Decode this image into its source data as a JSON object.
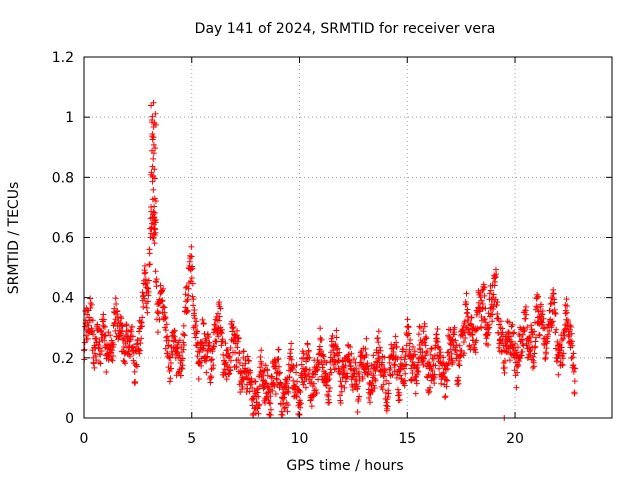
{
  "chart_data": {
    "type": "scatter",
    "title": "Day 141 of 2024, SRMTID for receiver vera",
    "xlabel": "GPS time / hours",
    "ylabel": "SRMTID / TECUs",
    "xlim": [
      0,
      24.5
    ],
    "ylim": [
      0,
      1.2
    ],
    "x_ticks": [
      0,
      5,
      10,
      15,
      20
    ],
    "x_tick_labels": [
      "0",
      "5",
      "10",
      "15",
      "20"
    ],
    "y_ticks": [
      0,
      0.2,
      0.4,
      0.6,
      0.8,
      1.0,
      1.2
    ],
    "y_tick_labels": [
      "0",
      "0.2",
      "0.4",
      "0.6",
      "0.8",
      "1",
      "1.2"
    ],
    "grid": true,
    "marker": "plus",
    "color": "#ff0000",
    "series": [
      {
        "name": "SRMTID",
        "profile_x": [
          0,
          0.3,
          0.8,
          1.3,
          1.8,
          2.3,
          2.7,
          3.0,
          3.2,
          3.4,
          3.7,
          4.0,
          4.4,
          4.8,
          5.0,
          5.3,
          5.7,
          6.2,
          6.7,
          7.2,
          7.7,
          8.2,
          8.7,
          9.2,
          9.7,
          10.2,
          10.7,
          11.2,
          11.7,
          12.2,
          12.7,
          13.2,
          13.7,
          14.2,
          14.7,
          15.2,
          15.7,
          16.2,
          16.7,
          17.2,
          17.7,
          18.2,
          18.7,
          19.0,
          19.3,
          19.7,
          20.2,
          20.7,
          21.2,
          21.7,
          22.0,
          22.3,
          22.7
        ],
        "profile_y": [
          0.23,
          0.32,
          0.22,
          0.27,
          0.3,
          0.16,
          0.38,
          0.4,
          0.85,
          0.33,
          0.36,
          0.22,
          0.18,
          0.4,
          0.45,
          0.22,
          0.2,
          0.28,
          0.2,
          0.22,
          0.08,
          0.1,
          0.12,
          0.11,
          0.12,
          0.13,
          0.15,
          0.17,
          0.18,
          0.17,
          0.15,
          0.16,
          0.17,
          0.15,
          0.18,
          0.2,
          0.21,
          0.19,
          0.18,
          0.22,
          0.27,
          0.32,
          0.36,
          0.4,
          0.3,
          0.22,
          0.24,
          0.27,
          0.3,
          0.35,
          0.22,
          0.3,
          0.2
        ],
        "x_range": [
          0,
          22.8
        ]
      }
    ],
    "isolated_points": [
      {
        "x": 19.5,
        "y": 0.0
      },
      {
        "x": 10.0,
        "y": 0.01
      }
    ]
  }
}
